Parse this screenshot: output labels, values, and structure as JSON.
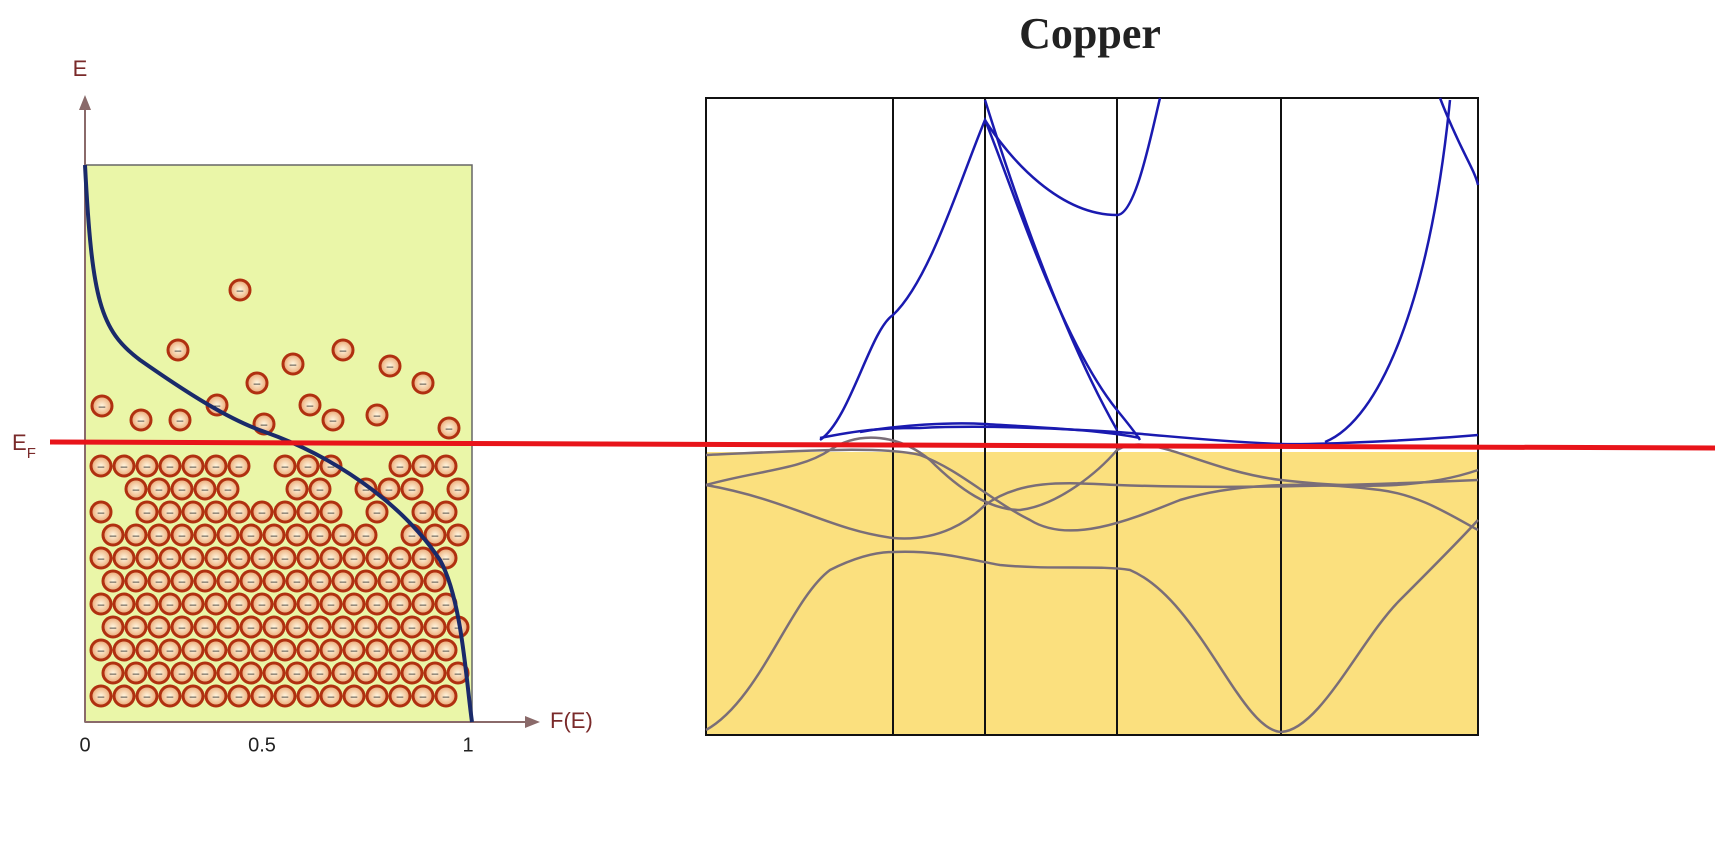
{
  "fermi_dirac": {
    "y_axis_label": "E",
    "x_axis_label": "F(E)",
    "x_tick_labels": [
      "0",
      "0.5",
      "1"
    ],
    "fermi_level_label": {
      "symbol": "E",
      "subscript": "F"
    },
    "electron_symbol": "–"
  },
  "band_structure": {
    "title": "Copper"
  }
}
